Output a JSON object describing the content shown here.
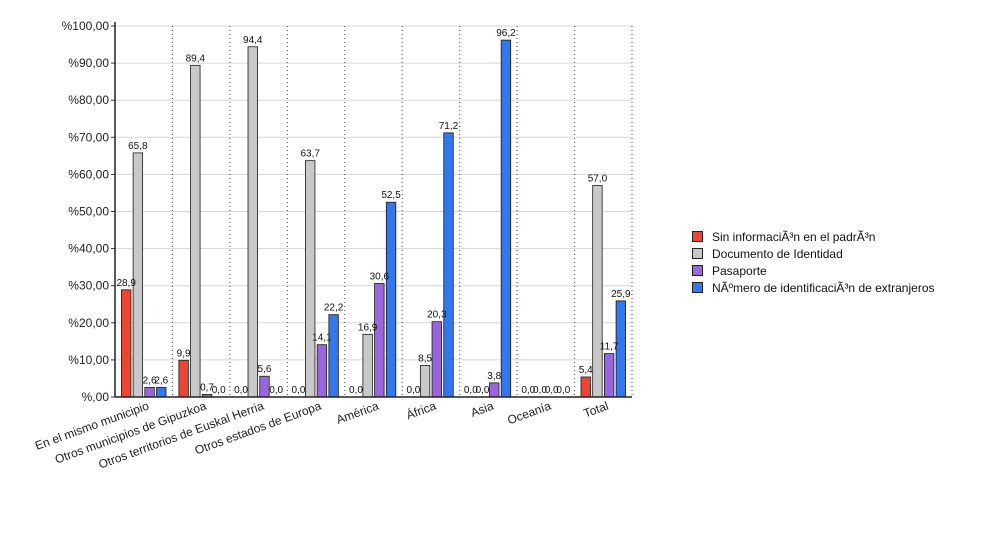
{
  "chart_data": {
    "type": "bar",
    "categories": [
      "En el mismo municipio",
      "Otros municipios de Gipuzkoa",
      "Otros territorios de Euskal Herria",
      "Otros estados de Europa",
      "América",
      "África",
      "Asia",
      "Oceanía",
      "Total"
    ],
    "series": [
      {
        "name": "Sin informaciÃ³n en el padrÃ³n",
        "color": "#ee4433",
        "values": [
          28.9,
          9.9,
          0.0,
          0.0,
          0.0,
          0.0,
          0.0,
          0.0,
          5.4
        ],
        "labels": [
          "28,9",
          "9,9",
          "0,0",
          "0,0",
          "0,0",
          "0,0",
          "0,0",
          "0,0",
          "5,4"
        ]
      },
      {
        "name": "Documento de Identidad",
        "color": "#c8c8c8",
        "values": [
          65.8,
          89.4,
          94.4,
          63.7,
          16.9,
          8.5,
          0.0,
          0.0,
          57.0
        ],
        "labels": [
          "65,8",
          "89,4",
          "94,4",
          "63,7",
          "16,9",
          "8,5",
          "0,0",
          "0,0",
          "57,0"
        ]
      },
      {
        "name": "Pasaporte",
        "color": "#9966dd",
        "values": [
          2.6,
          0.7,
          5.6,
          14.1,
          30.6,
          20.3,
          3.8,
          0.0,
          11.7
        ],
        "labels": [
          "2,6",
          "0,7",
          "5,6",
          "14,1",
          "30,6",
          "20,3",
          "3,8",
          "0,0",
          "11,7"
        ]
      },
      {
        "name": "NÃºmero de identificaciÃ³n de extranjeros",
        "color": "#3377ee",
        "values": [
          2.6,
          0.0,
          0.0,
          22.2,
          52.5,
          71.2,
          96.2,
          0.0,
          25.9
        ],
        "labels": [
          "2,6",
          "0,0",
          "0,0",
          "22,2",
          "52,5",
          "71,2",
          "96,2",
          "0,0",
          "25,9"
        ]
      }
    ],
    "ylim": [
      0,
      100
    ],
    "yticks": [
      "%,00",
      "%10,00",
      "%20,00",
      "%30,00",
      "%40,00",
      "%50,00",
      "%60,00",
      "%70,00",
      "%80,00",
      "%90,00",
      "%100,00"
    ],
    "grid": true,
    "legend_position": "right"
  }
}
